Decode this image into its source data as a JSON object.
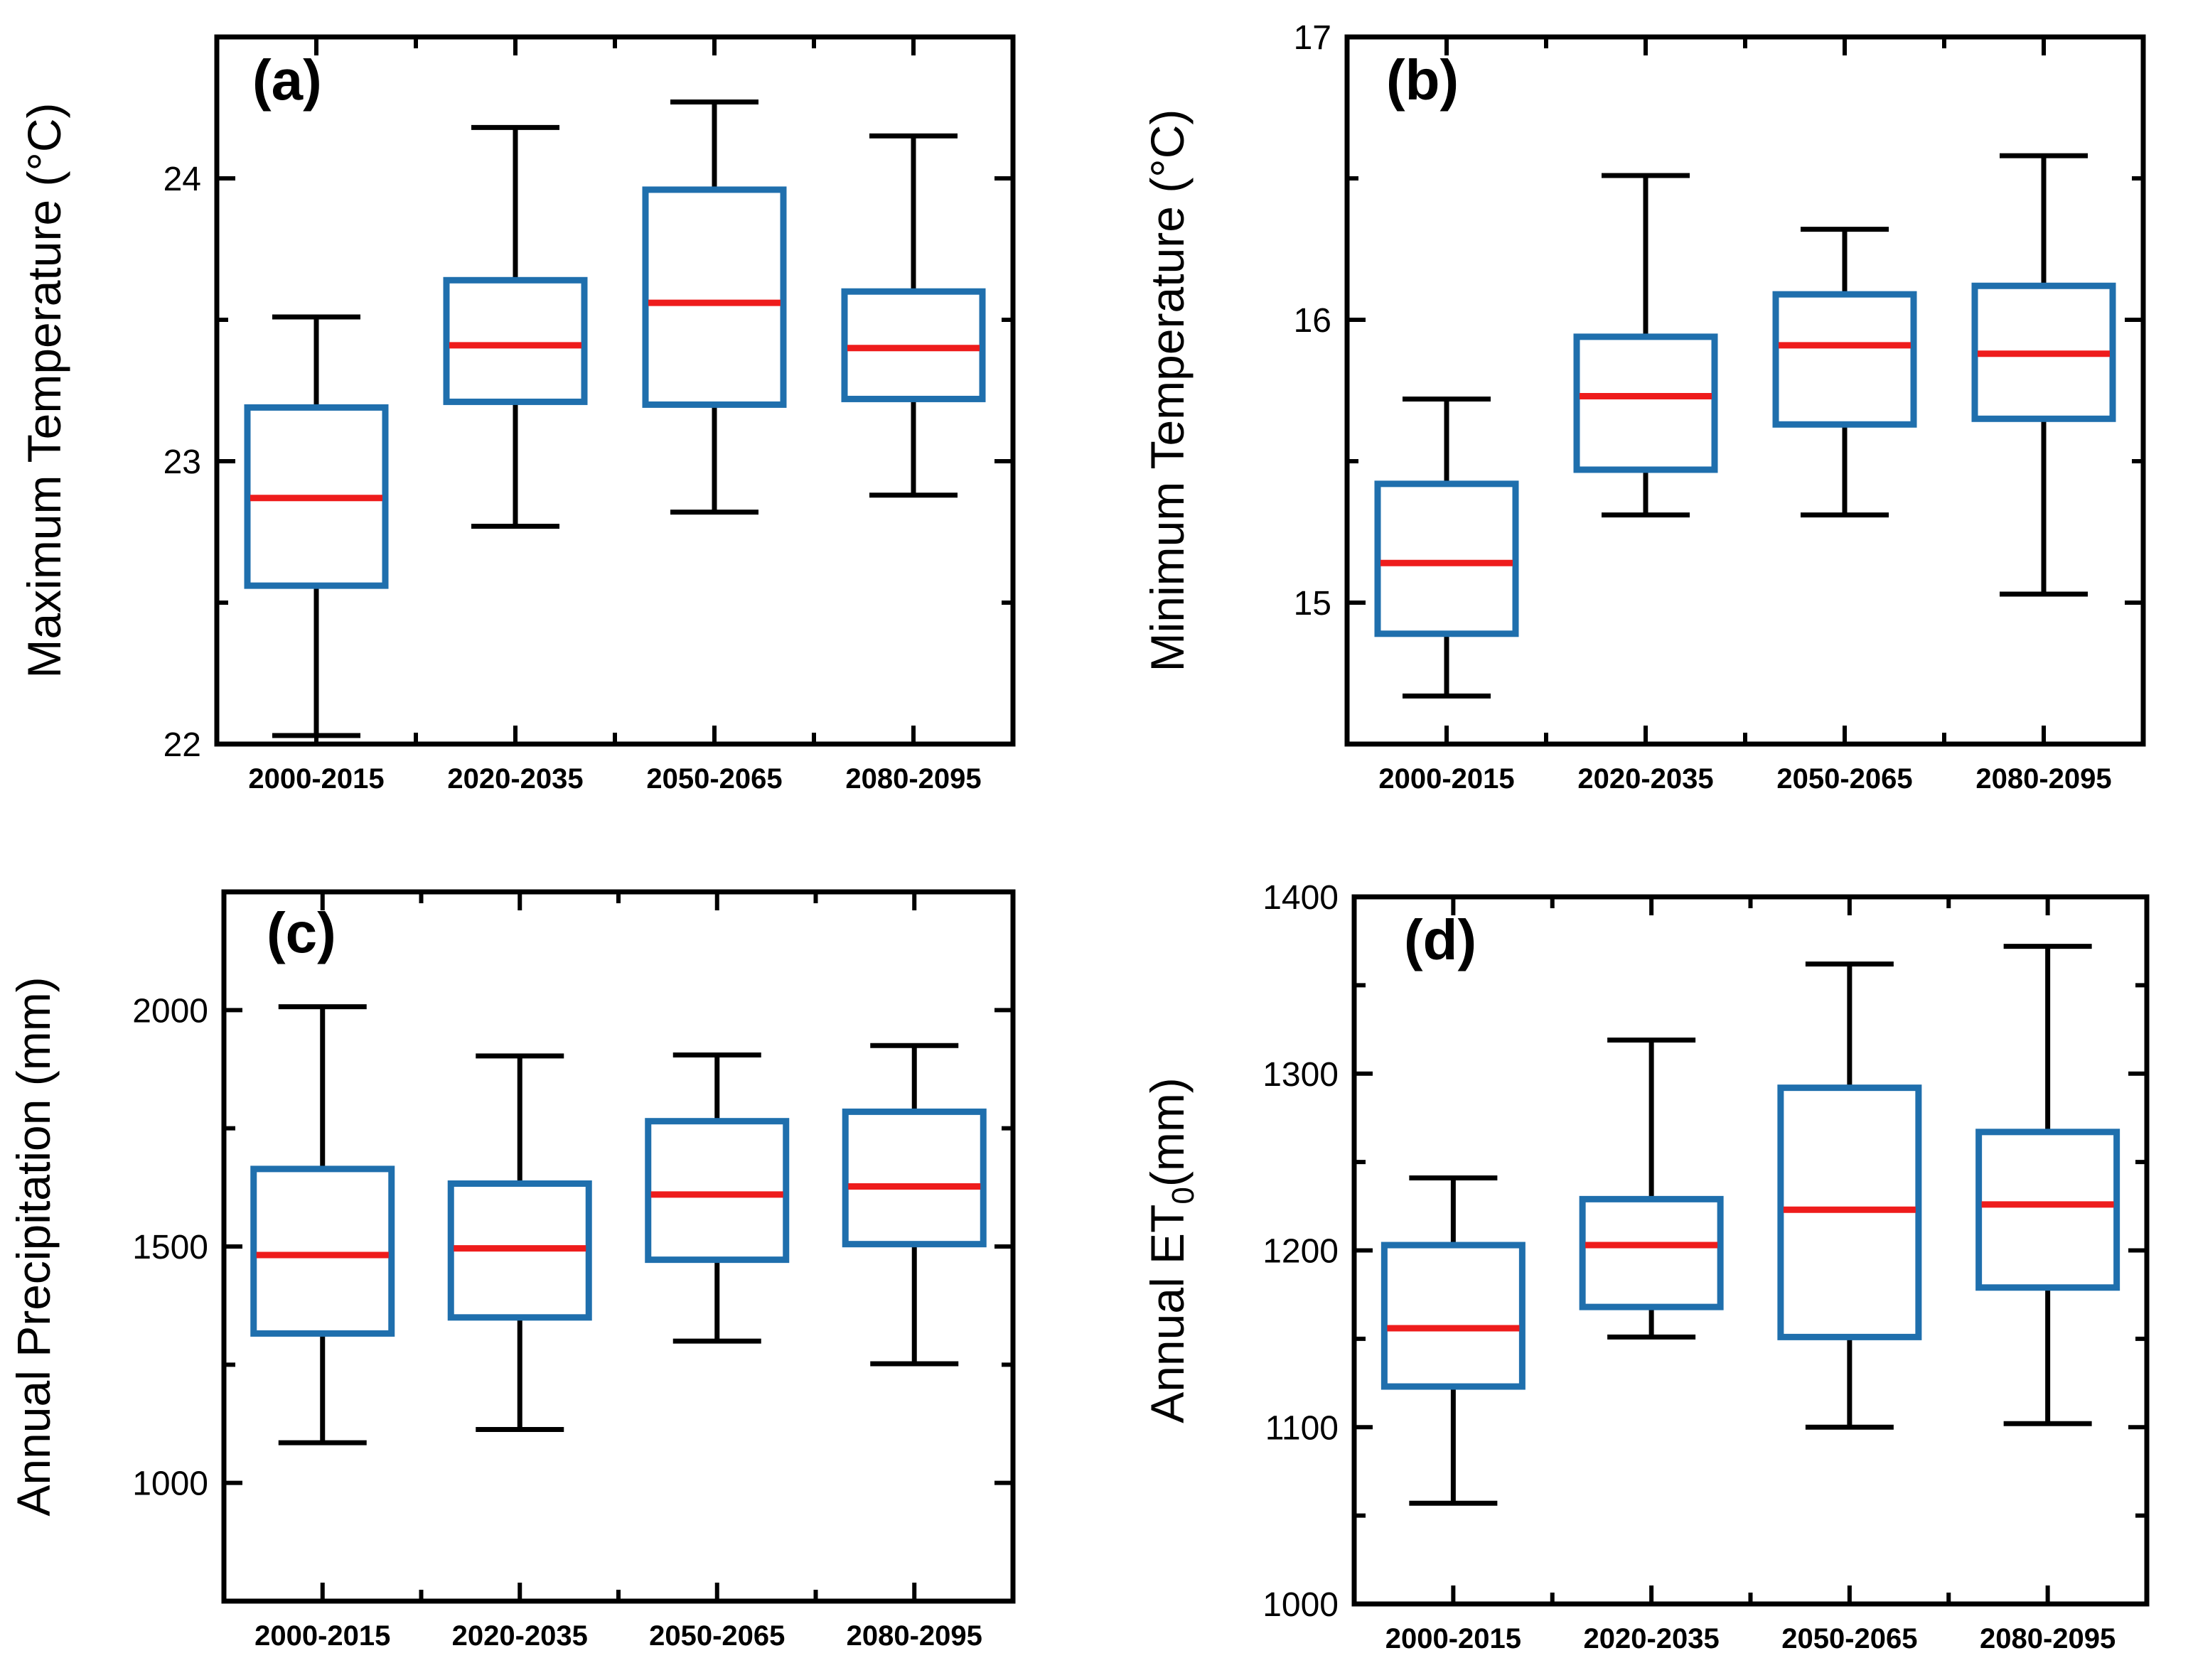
{
  "chart_data": [
    {
      "type": "box",
      "panel_label": "(a)",
      "ylabel": "Maximum Temperature (°C)",
      "ylim": [
        22,
        24.5
      ],
      "yticks": [
        22,
        23,
        24
      ],
      "ytick_labels": [
        "22",
        "23",
        "24"
      ],
      "categories": [
        "2000-2015",
        "2020-2035",
        "2050-2065",
        "2080-2095"
      ],
      "boxes": [
        {
          "whisker_low": 22.03,
          "q1": 22.56,
          "median": 22.87,
          "q3": 23.19,
          "whisker_high": 23.51
        },
        {
          "whisker_low": 22.77,
          "q1": 23.21,
          "median": 23.41,
          "q3": 23.64,
          "whisker_high": 24.18
        },
        {
          "whisker_low": 22.82,
          "q1": 23.2,
          "median": 23.56,
          "q3": 23.96,
          "whisker_high": 24.27
        },
        {
          "whisker_low": 22.88,
          "q1": 23.22,
          "median": 23.4,
          "q3": 23.6,
          "whisker_high": 24.15
        }
      ]
    },
    {
      "type": "box",
      "panel_label": "(b)",
      "ylabel": "Minimum Temperature (°C)",
      "ylim": [
        14.5,
        17
      ],
      "yticks": [
        15,
        16,
        17
      ],
      "ytick_labels": [
        "15",
        "16",
        "17"
      ],
      "categories": [
        "2000-2015",
        "2020-2035",
        "2050-2065",
        "2080-2095"
      ],
      "boxes": [
        {
          "whisker_low": 14.67,
          "q1": 14.89,
          "median": 15.14,
          "q3": 15.42,
          "whisker_high": 15.72
        },
        {
          "whisker_low": 15.31,
          "q1": 15.47,
          "median": 15.73,
          "q3": 15.94,
          "whisker_high": 16.51
        },
        {
          "whisker_low": 15.31,
          "q1": 15.63,
          "median": 15.91,
          "q3": 16.09,
          "whisker_high": 16.32
        },
        {
          "whisker_low": 15.03,
          "q1": 15.65,
          "median": 15.88,
          "q3": 16.12,
          "whisker_high": 16.58
        }
      ]
    },
    {
      "type": "box",
      "panel_label": "(c)",
      "ylabel": "Annual Precipitation (mm)",
      "ylim": [
        750,
        2250
      ],
      "yticks": [
        1000,
        1500,
        2000
      ],
      "ytick_labels": [
        "1000",
        "1500",
        "2000"
      ],
      "categories": [
        "2000-2015",
        "2020-2035",
        "2050-2065",
        "2080-2095"
      ],
      "boxes": [
        {
          "whisker_low": 1085,
          "q1": 1316,
          "median": 1482,
          "q3": 1664,
          "whisker_high": 2007
        },
        {
          "whisker_low": 1113,
          "q1": 1350,
          "median": 1496,
          "q3": 1633,
          "whisker_high": 1903
        },
        {
          "whisker_low": 1300,
          "q1": 1472,
          "median": 1610,
          "q3": 1765,
          "whisker_high": 1905
        },
        {
          "whisker_low": 1252,
          "q1": 1505,
          "median": 1627,
          "q3": 1785,
          "whisker_high": 1925
        }
      ]
    },
    {
      "type": "box",
      "panel_label": "(d)",
      "ylabel_main": "Annual ET",
      "ylabel_sub": "0",
      "ylabel_suffix": "(mm)",
      "ylim": [
        1000,
        1400
      ],
      "yticks": [
        1000,
        1100,
        1200,
        1300,
        1400
      ],
      "ytick_labels": [
        "1000",
        "1100",
        "1200",
        "1300",
        "1400"
      ],
      "categories": [
        "2000-2015",
        "2020-2035",
        "2050-2065",
        "2080-2095"
      ],
      "boxes": [
        {
          "whisker_low": 1057,
          "q1": 1123,
          "median": 1156,
          "q3": 1203,
          "whisker_high": 1241
        },
        {
          "whisker_low": 1151,
          "q1": 1168,
          "median": 1203,
          "q3": 1229,
          "whisker_high": 1319
        },
        {
          "whisker_low": 1100,
          "q1": 1151,
          "median": 1223,
          "q3": 1292,
          "whisker_high": 1362
        },
        {
          "whisker_low": 1102,
          "q1": 1179,
          "median": 1226,
          "q3": 1267,
          "whisker_high": 1372
        }
      ]
    }
  ],
  "colors": {
    "box": "#1f6fad",
    "median": "#ee1c1c",
    "whisker": "#000000",
    "axis": "#000000"
  }
}
